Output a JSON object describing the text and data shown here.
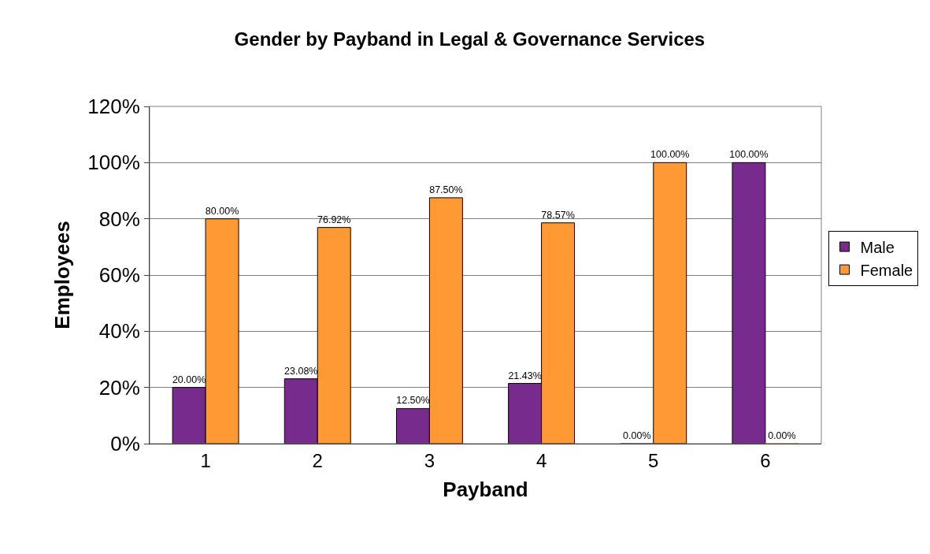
{
  "chart_data": {
    "type": "bar",
    "title": "Gender by Payband in Legal & Governance Services",
    "xlabel": "Payband",
    "ylabel": "Employees",
    "categories": [
      "1",
      "2",
      "3",
      "4",
      "5",
      "6"
    ],
    "series": [
      {
        "name": "Male",
        "color": "#772b8c",
        "values": [
          20.0,
          23.08,
          12.5,
          21.43,
          0.0,
          100.0
        ],
        "value_labels": [
          "20.00%",
          "23.08%",
          "12.50%",
          "21.43%",
          "0.00%",
          "100.00%"
        ]
      },
      {
        "name": "Female",
        "color": "#ff9933",
        "values": [
          80.0,
          76.92,
          87.5,
          78.57,
          100.0,
          0.0
        ],
        "value_labels": [
          "80.00%",
          "76.92%",
          "87.50%",
          "78.57%",
          "100.00%",
          "0.00%"
        ]
      }
    ],
    "ylim": [
      0,
      120
    ],
    "yticks": [
      {
        "value": 0,
        "label": "0%"
      },
      {
        "value": 20,
        "label": "20%"
      },
      {
        "value": 40,
        "label": "40%"
      },
      {
        "value": 60,
        "label": "60%"
      },
      {
        "value": 80,
        "label": "80%"
      },
      {
        "value": 100,
        "label": "100%"
      },
      {
        "value": 120,
        "label": "120%"
      }
    ],
    "grid": "y",
    "legend": "right"
  }
}
